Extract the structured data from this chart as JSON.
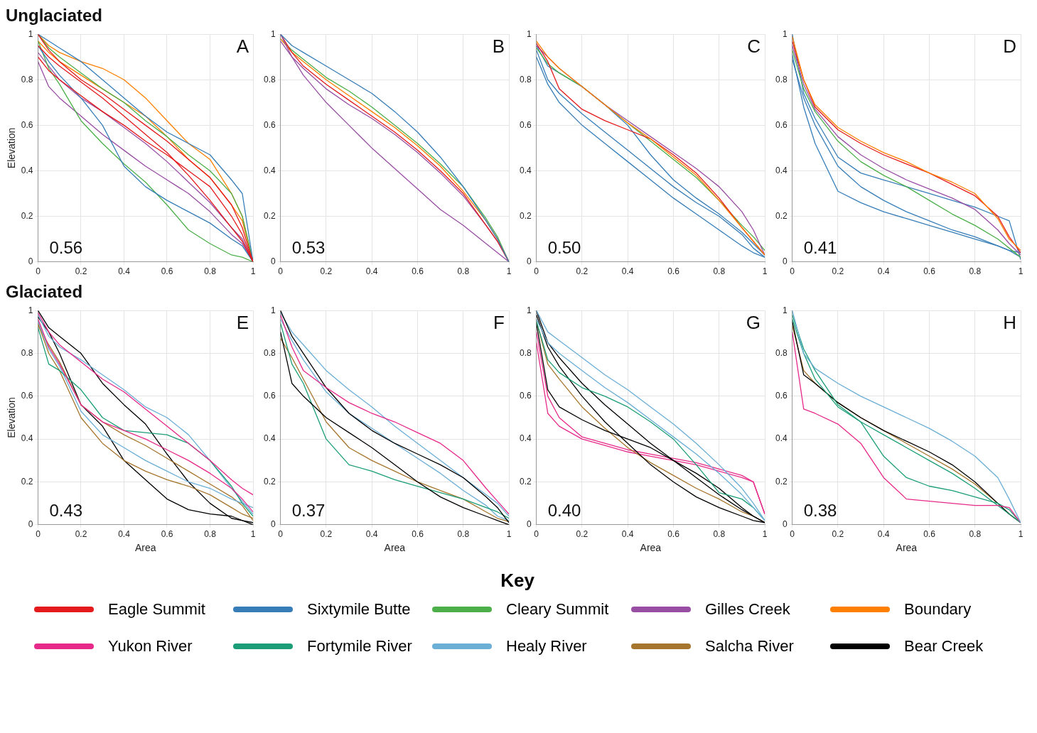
{
  "chart_data": [
    {
      "type": "line",
      "title": "Unglaciated",
      "ylabel": "Elevation",
      "annotations": [
        "A",
        "0.56"
      ],
      "xlim": [
        0,
        1
      ],
      "ylim": [
        0,
        1
      ],
      "xticks": [
        0,
        0.2,
        0.4,
        0.6,
        0.8,
        1
      ],
      "yticks": [
        0,
        0.2,
        0.4,
        0.6,
        0.8,
        1
      ],
      "grid": true,
      "legend": false,
      "marker": "none",
      "x": [
        0,
        0.05,
        0.1,
        0.2,
        0.3,
        0.4,
        0.5,
        0.6,
        0.7,
        0.8,
        0.9,
        0.95,
        1
      ],
      "series": [
        {
          "color": "#e41a1c",
          "values": [
            1,
            0.93,
            0.88,
            0.8,
            0.74,
            0.67,
            0.6,
            0.53,
            0.45,
            0.37,
            0.25,
            0.15,
            0
          ]
        },
        {
          "color": "#e41a1c",
          "values": [
            0.9,
            0.84,
            0.8,
            0.73,
            0.66,
            0.6,
            0.53,
            0.47,
            0.4,
            0.33,
            0.2,
            0.12,
            0
          ]
        },
        {
          "color": "#e41a1c",
          "values": [
            0.95,
            0.9,
            0.86,
            0.79,
            0.72,
            0.64,
            0.56,
            0.48,
            0.38,
            0.27,
            0.15,
            0.09,
            0
          ]
        },
        {
          "color": "#377eb8",
          "values": [
            1,
            0.97,
            0.94,
            0.88,
            0.8,
            0.72,
            0.64,
            0.57,
            0.52,
            0.47,
            0.36,
            0.3,
            0
          ]
        },
        {
          "color": "#377eb8",
          "values": [
            0.95,
            0.88,
            0.82,
            0.72,
            0.6,
            0.42,
            0.33,
            0.27,
            0.22,
            0.17,
            0.1,
            0.07,
            0
          ]
        },
        {
          "color": "#4daf4a",
          "values": [
            0.97,
            0.85,
            0.78,
            0.62,
            0.52,
            0.43,
            0.35,
            0.25,
            0.14,
            0.08,
            0.03,
            0.02,
            0
          ]
        },
        {
          "color": "#4daf4a",
          "values": [
            1,
            0.94,
            0.9,
            0.83,
            0.76,
            0.7,
            0.62,
            0.55,
            0.47,
            0.4,
            0.3,
            0.2,
            0
          ]
        },
        {
          "color": "#984ea3",
          "values": [
            0.88,
            0.77,
            0.72,
            0.64,
            0.56,
            0.49,
            0.42,
            0.36,
            0.3,
            0.22,
            0.12,
            0.08,
            0
          ]
        },
        {
          "color": "#984ea3",
          "values": [
            0.92,
            0.86,
            0.8,
            0.72,
            0.66,
            0.59,
            0.52,
            0.44,
            0.35,
            0.26,
            0.15,
            0.1,
            0
          ]
        },
        {
          "color": "#ff7f00",
          "values": [
            1,
            0.95,
            0.92,
            0.88,
            0.85,
            0.8,
            0.72,
            0.62,
            0.52,
            0.45,
            0.3,
            0.2,
            0
          ]
        },
        {
          "color": "#ff7f00",
          "values": [
            0.97,
            0.92,
            0.88,
            0.82,
            0.76,
            0.7,
            0.64,
            0.55,
            0.45,
            0.37,
            0.25,
            0.18,
            0
          ]
        }
      ]
    },
    {
      "type": "line",
      "annotations": [
        "B",
        "0.53"
      ],
      "xlim": [
        0,
        1
      ],
      "ylim": [
        0,
        1
      ],
      "xticks": [
        0,
        0.2,
        0.4,
        0.6,
        0.8,
        1
      ],
      "yticks": [
        0,
        0.2,
        0.4,
        0.6,
        0.8,
        1
      ],
      "grid": true,
      "legend": false,
      "marker": "none",
      "x": [
        0,
        0.05,
        0.1,
        0.2,
        0.3,
        0.4,
        0.5,
        0.6,
        0.7,
        0.8,
        0.9,
        0.95,
        1
      ],
      "series": [
        {
          "color": "#377eb8",
          "values": [
            1,
            0.95,
            0.92,
            0.86,
            0.8,
            0.74,
            0.66,
            0.57,
            0.46,
            0.33,
            0.18,
            0.1,
            0
          ]
        },
        {
          "color": "#984ea3",
          "values": [
            1,
            0.9,
            0.82,
            0.7,
            0.6,
            0.5,
            0.41,
            0.32,
            0.23,
            0.16,
            0.08,
            0.04,
            0
          ]
        },
        {
          "color": "#e41a1c",
          "values": [
            1,
            0.92,
            0.86,
            0.78,
            0.71,
            0.64,
            0.57,
            0.49,
            0.4,
            0.3,
            0.16,
            0.09,
            0
          ]
        },
        {
          "color": "#ff7f00",
          "values": [
            0.98,
            0.92,
            0.88,
            0.8,
            0.73,
            0.66,
            0.59,
            0.51,
            0.42,
            0.31,
            0.18,
            0.1,
            0
          ]
        },
        {
          "color": "#4daf4a",
          "values": [
            0.98,
            0.93,
            0.89,
            0.81,
            0.75,
            0.68,
            0.6,
            0.52,
            0.43,
            0.33,
            0.19,
            0.11,
            0
          ]
        },
        {
          "color": "#984ea3",
          "values": [
            0.97,
            0.9,
            0.85,
            0.76,
            0.69,
            0.63,
            0.56,
            0.48,
            0.39,
            0.29,
            0.16,
            0.09,
            0
          ]
        }
      ]
    },
    {
      "type": "line",
      "annotations": [
        "C",
        "0.50"
      ],
      "xlim": [
        0,
        1
      ],
      "ylim": [
        0,
        1
      ],
      "xticks": [
        0,
        0.2,
        0.4,
        0.6,
        0.8,
        1
      ],
      "yticks": [
        0,
        0.2,
        0.4,
        0.6,
        0.8,
        1
      ],
      "grid": true,
      "legend": false,
      "marker": "none",
      "x": [
        0,
        0.05,
        0.1,
        0.2,
        0.3,
        0.4,
        0.5,
        0.6,
        0.7,
        0.8,
        0.9,
        0.95,
        1
      ],
      "series": [
        {
          "color": "#ff7f00",
          "values": [
            0.97,
            0.9,
            0.85,
            0.77,
            0.69,
            0.61,
            0.54,
            0.46,
            0.38,
            0.27,
            0.15,
            0.09,
            0.03
          ]
        },
        {
          "color": "#e41a1c",
          "values": [
            0.96,
            0.88,
            0.76,
            0.67,
            0.62,
            0.58,
            0.54,
            0.47,
            0.39,
            0.28,
            0.15,
            0.09,
            0.03
          ]
        },
        {
          "color": "#984ea3",
          "values": [
            0.95,
            0.9,
            0.85,
            0.77,
            0.69,
            0.62,
            0.55,
            0.48,
            0.41,
            0.33,
            0.22,
            0.14,
            0.03
          ]
        },
        {
          "color": "#4daf4a",
          "values": [
            0.94,
            0.87,
            0.83,
            0.77,
            0.69,
            0.61,
            0.53,
            0.45,
            0.37,
            0.27,
            0.16,
            0.11,
            0.05
          ]
        },
        {
          "color": "#377eb8",
          "values": [
            0.93,
            0.8,
            0.74,
            0.65,
            0.57,
            0.49,
            0.41,
            0.33,
            0.26,
            0.2,
            0.12,
            0.06,
            0.02
          ]
        },
        {
          "color": "#377eb8",
          "values": [
            0.9,
            0.78,
            0.7,
            0.6,
            0.52,
            0.44,
            0.36,
            0.28,
            0.21,
            0.14,
            0.07,
            0.04,
            0.02
          ]
        },
        {
          "color": "#377eb8",
          "values": [
            0.95,
            0.86,
            0.83,
            0.77,
            0.69,
            0.6,
            0.47,
            0.36,
            0.28,
            0.21,
            0.13,
            0.08,
            0.03
          ]
        }
      ]
    },
    {
      "type": "line",
      "annotations": [
        "D",
        "0.41"
      ],
      "xlim": [
        0,
        1
      ],
      "ylim": [
        0,
        1
      ],
      "xticks": [
        0,
        0.2,
        0.4,
        0.6,
        0.8,
        1
      ],
      "yticks": [
        0,
        0.2,
        0.4,
        0.6,
        0.8,
        1
      ],
      "grid": true,
      "legend": false,
      "marker": "none",
      "x": [
        0,
        0.05,
        0.1,
        0.2,
        0.3,
        0.4,
        0.5,
        0.6,
        0.7,
        0.8,
        0.9,
        0.95,
        1
      ],
      "series": [
        {
          "color": "#ff7f00",
          "values": [
            0.99,
            0.8,
            0.69,
            0.59,
            0.53,
            0.48,
            0.44,
            0.39,
            0.35,
            0.3,
            0.19,
            0.1,
            0.05
          ]
        },
        {
          "color": "#e41a1c",
          "values": [
            0.97,
            0.8,
            0.68,
            0.58,
            0.52,
            0.47,
            0.43,
            0.39,
            0.34,
            0.29,
            0.2,
            0.11,
            0.04
          ]
        },
        {
          "color": "#984ea3",
          "values": [
            0.95,
            0.78,
            0.67,
            0.55,
            0.47,
            0.41,
            0.36,
            0.32,
            0.28,
            0.23,
            0.14,
            0.08,
            0.03
          ]
        },
        {
          "color": "#4daf4a",
          "values": [
            0.93,
            0.76,
            0.66,
            0.53,
            0.44,
            0.38,
            0.33,
            0.27,
            0.21,
            0.16,
            0.1,
            0.06,
            0.02
          ]
        },
        {
          "color": "#377eb8",
          "values": [
            1,
            0.74,
            0.63,
            0.46,
            0.39,
            0.36,
            0.33,
            0.3,
            0.27,
            0.24,
            0.2,
            0.18,
            0.01
          ]
        },
        {
          "color": "#377eb8",
          "values": [
            0.91,
            0.68,
            0.52,
            0.31,
            0.26,
            0.22,
            0.19,
            0.16,
            0.13,
            0.1,
            0.07,
            0.05,
            0.04
          ]
        },
        {
          "color": "#377eb8",
          "values": [
            0.89,
            0.72,
            0.6,
            0.42,
            0.33,
            0.27,
            0.22,
            0.18,
            0.14,
            0.11,
            0.07,
            0.05,
            0.02
          ]
        }
      ]
    },
    {
      "type": "line",
      "title": "Glaciated",
      "xlabel": "Area",
      "ylabel": "Elevation",
      "annotations": [
        "E",
        "0.43"
      ],
      "xlim": [
        0,
        1
      ],
      "ylim": [
        0,
        1
      ],
      "xticks": [
        0,
        0.2,
        0.4,
        0.6,
        0.8,
        1
      ],
      "yticks": [
        0,
        0.2,
        0.4,
        0.6,
        0.8,
        1
      ],
      "grid": true,
      "legend": false,
      "marker": "none",
      "x": [
        0,
        0.05,
        0.1,
        0.2,
        0.3,
        0.4,
        0.5,
        0.6,
        0.7,
        0.8,
        0.9,
        0.95,
        1
      ],
      "series": [
        {
          "color": "#e7298a",
          "values": [
            0.99,
            0.9,
            0.84,
            0.76,
            0.68,
            0.62,
            0.54,
            0.46,
            0.38,
            0.3,
            0.21,
            0.17,
            0.14
          ]
        },
        {
          "color": "#e7298a",
          "values": [
            0.96,
            0.83,
            0.75,
            0.56,
            0.48,
            0.44,
            0.4,
            0.35,
            0.3,
            0.24,
            0.17,
            0.12,
            0.06
          ]
        },
        {
          "color": "#1b9e77",
          "values": [
            0.92,
            0.75,
            0.72,
            0.63,
            0.5,
            0.44,
            0.43,
            0.42,
            0.38,
            0.3,
            0.18,
            0.1,
            0.04
          ]
        },
        {
          "color": "#6baed6",
          "values": [
            0.98,
            0.88,
            0.83,
            0.77,
            0.7,
            0.63,
            0.55,
            0.5,
            0.42,
            0.3,
            0.17,
            0.11,
            0.05
          ]
        },
        {
          "color": "#6baed6",
          "values": [
            0.95,
            0.82,
            0.74,
            0.53,
            0.42,
            0.36,
            0.3,
            0.25,
            0.2,
            0.17,
            0.12,
            0.1,
            0.08
          ]
        },
        {
          "color": "#a6762e",
          "values": [
            0.94,
            0.8,
            0.72,
            0.5,
            0.38,
            0.3,
            0.25,
            0.21,
            0.18,
            0.14,
            0.08,
            0.05,
            0.03
          ]
        },
        {
          "color": "#a6762e",
          "values": [
            0.93,
            0.84,
            0.76,
            0.56,
            0.48,
            0.42,
            0.37,
            0.31,
            0.25,
            0.19,
            0.13,
            0.09,
            0.02
          ]
        },
        {
          "color": "#000000",
          "values": [
            1,
            0.92,
            0.88,
            0.8,
            0.66,
            0.56,
            0.47,
            0.33,
            0.2,
            0.1,
            0.03,
            0.02,
            0.01
          ]
        },
        {
          "color": "#000000",
          "values": [
            0.97,
            0.9,
            0.8,
            0.56,
            0.46,
            0.3,
            0.21,
            0.12,
            0.07,
            0.05,
            0.04,
            0.02,
            0
          ]
        }
      ]
    },
    {
      "type": "line",
      "xlabel": "Area",
      "annotations": [
        "F",
        "0.37"
      ],
      "xlim": [
        0,
        1
      ],
      "ylim": [
        0,
        1
      ],
      "xticks": [
        0,
        0.2,
        0.4,
        0.6,
        0.8,
        1
      ],
      "yticks": [
        0,
        0.2,
        0.4,
        0.6,
        0.8,
        1
      ],
      "grid": true,
      "legend": false,
      "marker": "none",
      "x": [
        0,
        0.05,
        0.1,
        0.2,
        0.3,
        0.4,
        0.5,
        0.6,
        0.7,
        0.8,
        0.9,
        0.95,
        1
      ],
      "series": [
        {
          "color": "#e7298a",
          "values": [
            0.98,
            0.83,
            0.72,
            0.64,
            0.57,
            0.52,
            0.48,
            0.43,
            0.38,
            0.3,
            0.17,
            0.11,
            0.05
          ]
        },
        {
          "color": "#000000",
          "values": [
            1,
            0.88,
            0.8,
            0.64,
            0.52,
            0.44,
            0.38,
            0.33,
            0.28,
            0.22,
            0.13,
            0.08,
            0.01
          ]
        },
        {
          "color": "#000000",
          "values": [
            0.9,
            0.66,
            0.6,
            0.5,
            0.43,
            0.36,
            0.28,
            0.2,
            0.13,
            0.08,
            0.04,
            0.02,
            0
          ]
        },
        {
          "color": "#1b9e77",
          "values": [
            0.94,
            0.75,
            0.66,
            0.4,
            0.28,
            0.25,
            0.21,
            0.18,
            0.15,
            0.12,
            0.08,
            0.06,
            0.03
          ]
        },
        {
          "color": "#6baed6",
          "values": [
            0.96,
            0.86,
            0.77,
            0.62,
            0.52,
            0.45,
            0.38,
            0.31,
            0.24,
            0.16,
            0.09,
            0.04,
            0.02
          ]
        },
        {
          "color": "#a6762e",
          "values": [
            0.87,
            0.78,
            0.68,
            0.48,
            0.36,
            0.3,
            0.25,
            0.2,
            0.16,
            0.12,
            0.06,
            0.03,
            0.015
          ]
        },
        {
          "color": "#6baed6",
          "values": [
            0.99,
            0.9,
            0.84,
            0.72,
            0.63,
            0.55,
            0.46,
            0.38,
            0.3,
            0.22,
            0.14,
            0.1,
            0.04
          ]
        }
      ]
    },
    {
      "type": "line",
      "xlabel": "Area",
      "annotations": [
        "G",
        "0.40"
      ],
      "xlim": [
        0,
        1
      ],
      "ylim": [
        0,
        1
      ],
      "xticks": [
        0,
        0.2,
        0.4,
        0.6,
        0.8,
        1
      ],
      "yticks": [
        0,
        0.2,
        0.4,
        0.6,
        0.8,
        1
      ],
      "grid": true,
      "legend": false,
      "marker": "none",
      "x": [
        0,
        0.05,
        0.1,
        0.2,
        0.3,
        0.4,
        0.5,
        0.6,
        0.7,
        0.8,
        0.9,
        0.95,
        1
      ],
      "series": [
        {
          "color": "#6baed6",
          "values": [
            1,
            0.9,
            0.86,
            0.78,
            0.7,
            0.63,
            0.55,
            0.47,
            0.38,
            0.28,
            0.17,
            0.1,
            0.02
          ]
        },
        {
          "color": "#6baed6",
          "values": [
            0.96,
            0.85,
            0.8,
            0.72,
            0.64,
            0.57,
            0.49,
            0.41,
            0.33,
            0.24,
            0.14,
            0.08,
            0.02
          ]
        },
        {
          "color": "#1b9e77",
          "values": [
            0.95,
            0.77,
            0.71,
            0.64,
            0.6,
            0.55,
            0.48,
            0.4,
            0.28,
            0.15,
            0.12,
            0.08,
            0.02
          ]
        },
        {
          "color": "#000000",
          "values": [
            1,
            0.85,
            0.78,
            0.66,
            0.56,
            0.47,
            0.38,
            0.3,
            0.22,
            0.14,
            0.07,
            0.04,
            0.01
          ]
        },
        {
          "color": "#000000",
          "values": [
            0.98,
            0.83,
            0.74,
            0.6,
            0.48,
            0.38,
            0.28,
            0.2,
            0.13,
            0.08,
            0.04,
            0.02,
            0.01
          ]
        },
        {
          "color": "#000000",
          "values": [
            0.94,
            0.63,
            0.55,
            0.49,
            0.44,
            0.4,
            0.36,
            0.3,
            0.24,
            0.17,
            0.08,
            0.04,
            0.01
          ]
        },
        {
          "color": "#a6762e",
          "values": [
            0.95,
            0.75,
            0.68,
            0.55,
            0.45,
            0.36,
            0.29,
            0.23,
            0.17,
            0.12,
            0.06,
            0.04,
            0.01
          ]
        },
        {
          "color": "#e7298a",
          "values": [
            0.85,
            0.52,
            0.46,
            0.4,
            0.37,
            0.34,
            0.32,
            0.3,
            0.28,
            0.25,
            0.22,
            0.2,
            0.05
          ]
        },
        {
          "color": "#e7298a",
          "values": [
            0.9,
            0.6,
            0.5,
            0.41,
            0.38,
            0.35,
            0.33,
            0.31,
            0.29,
            0.26,
            0.23,
            0.2,
            0.05
          ]
        }
      ]
    },
    {
      "type": "line",
      "xlabel": "Area",
      "annotations": [
        "H",
        "0.38"
      ],
      "xlim": [
        0,
        1
      ],
      "ylim": [
        0,
        1
      ],
      "xticks": [
        0,
        0.2,
        0.4,
        0.6,
        0.8,
        1
      ],
      "yticks": [
        0,
        0.2,
        0.4,
        0.6,
        0.8,
        1
      ],
      "grid": true,
      "legend": false,
      "marker": "none",
      "x": [
        0,
        0.05,
        0.1,
        0.2,
        0.3,
        0.4,
        0.5,
        0.6,
        0.7,
        0.8,
        0.9,
        0.95,
        1
      ],
      "series": [
        {
          "color": "#6baed6",
          "values": [
            1,
            0.8,
            0.73,
            0.66,
            0.6,
            0.55,
            0.5,
            0.45,
            0.39,
            0.32,
            0.22,
            0.12,
            0.01
          ]
        },
        {
          "color": "#e7298a",
          "values": [
            0.9,
            0.54,
            0.52,
            0.47,
            0.38,
            0.22,
            0.12,
            0.11,
            0.1,
            0.09,
            0.09,
            0.08,
            0.01
          ]
        },
        {
          "color": "#1b9e77",
          "values": [
            0.98,
            0.82,
            0.72,
            0.56,
            0.48,
            0.32,
            0.22,
            0.18,
            0.16,
            0.13,
            0.1,
            0.07,
            0.01
          ]
        },
        {
          "color": "#1b9e77",
          "values": [
            0.96,
            0.8,
            0.68,
            0.55,
            0.48,
            0.42,
            0.36,
            0.3,
            0.24,
            0.17,
            0.09,
            0.05,
            0.01
          ]
        },
        {
          "color": "#000000",
          "values": [
            0.95,
            0.7,
            0.66,
            0.57,
            0.5,
            0.44,
            0.39,
            0.34,
            0.28,
            0.2,
            0.1,
            0.05,
            0.01
          ]
        },
        {
          "color": "#a6762e",
          "values": [
            0.93,
            0.72,
            0.66,
            0.57,
            0.5,
            0.44,
            0.38,
            0.32,
            0.26,
            0.19,
            0.1,
            0.05,
            0.01
          ]
        }
      ]
    },
    {
      "type": "other",
      "title": "Key",
      "categories": [
        "Eagle Summit",
        "Sixtymile Butte",
        "Cleary Summit",
        "Gilles Creek",
        "Boundary",
        "Yukon River",
        "Fortymile River",
        "Healy River",
        "Salcha River",
        "Bear Creek"
      ],
      "colors": [
        "#e41a1c",
        "#377eb8",
        "#4daf4a",
        "#984ea3",
        "#ff7f00",
        "#e7298a",
        "#1b9e77",
        "#6baed6",
        "#a6762e",
        "#000000"
      ]
    }
  ]
}
